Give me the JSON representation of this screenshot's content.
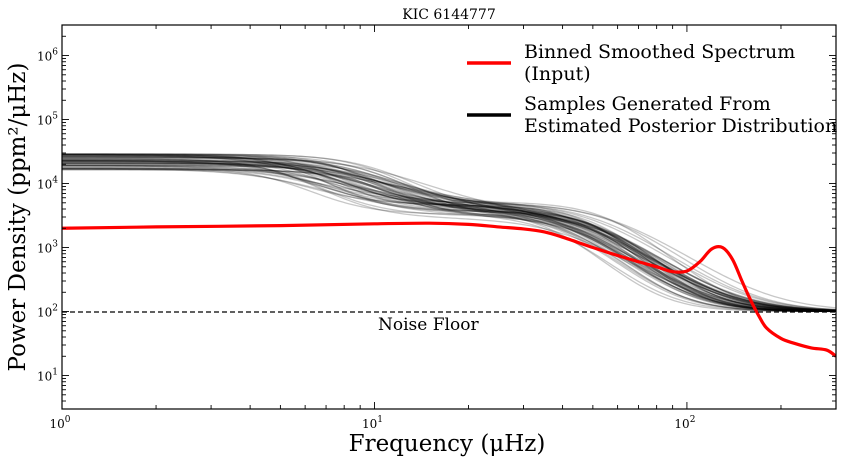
{
  "chart_data": {
    "type": "line",
    "title": "KIC 6144777",
    "xlabel": "Frequency (μHz)",
    "ylabel": "Power Density (ppm²/μHz)",
    "xscale": "log",
    "yscale": "log",
    "xlim": [
      1,
      300
    ],
    "ylim": [
      3,
      3000000
    ],
    "x_ticks": [
      {
        "value": 1,
        "base": "10",
        "exp": "0"
      },
      {
        "value": 10,
        "base": "10",
        "exp": "1"
      },
      {
        "value": 100,
        "base": "10",
        "exp": "2"
      }
    ],
    "y_ticks": [
      {
        "value": 10,
        "base": "10",
        "exp": "1"
      },
      {
        "value": 100,
        "base": "10",
        "exp": "2"
      },
      {
        "value": 1000,
        "base": "10",
        "exp": "3"
      },
      {
        "value": 10000,
        "base": "10",
        "exp": "4"
      },
      {
        "value": 100000,
        "base": "10",
        "exp": "5"
      },
      {
        "value": 1000000,
        "base": "10",
        "exp": "6"
      }
    ],
    "legend_position": "top-right",
    "legend": [
      {
        "lines": [
          "Binned Smoothed Spectrum",
          "(Input)"
        ],
        "color": "#ff0000"
      },
      {
        "lines": [
          "Samples Generated From",
          "Estimated Posterior Distribution"
        ],
        "color": "#000000"
      }
    ],
    "series": [
      {
        "name": "Binned Smoothed Spectrum (Input)",
        "color": "#ff0000",
        "x": [
          1,
          2,
          5,
          10,
          15,
          20,
          25,
          30,
          35,
          40,
          50,
          60,
          70,
          80,
          90,
          100,
          110,
          120,
          130,
          140,
          150,
          160,
          170,
          180,
          200,
          220,
          250,
          280,
          300
        ],
        "y": [
          2000,
          2100,
          2200,
          2350,
          2400,
          2300,
          2100,
          1950,
          1750,
          1450,
          1000,
          750,
          600,
          500,
          420,
          430,
          600,
          950,
          1000,
          650,
          300,
          150,
          85,
          55,
          38,
          32,
          27,
          25,
          20
        ]
      }
    ],
    "posterior_samples": {
      "name": "Samples Generated From Estimated Posterior Distribution",
      "color": "#000000",
      "count": 60,
      "low_freq_level_range": [
        16000,
        30000
      ],
      "knee1_freq_range": [
        5,
        11
      ],
      "mid_level_range": [
        2800,
        5000
      ],
      "knee2_freq_range": [
        38,
        60
      ],
      "noise_level": 100
    },
    "annotations": [
      {
        "text": "Noise Floor",
        "x": 10,
        "y": 55
      },
      {
        "text": "noise floor line",
        "type": "hline",
        "y": 100,
        "style": "dashed"
      }
    ],
    "grid": false
  }
}
